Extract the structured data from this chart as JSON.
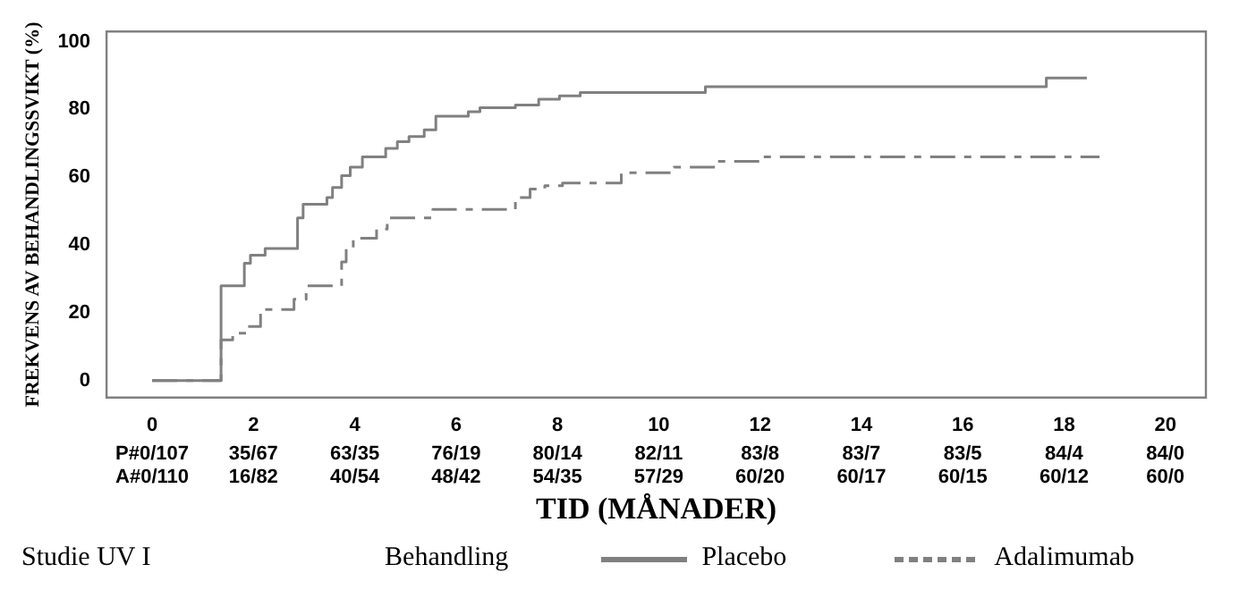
{
  "chart_data": {
    "type": "step",
    "xlabel": "TID (MÅNADER)",
    "ylabel": "FREKVENS AV BEHANDLINGSSVIKT (%)",
    "legend_title": "Behandling",
    "xlim": [
      -0.9,
      20.8
    ],
    "ylim": [
      -5,
      103
    ],
    "xticks": [
      0,
      2,
      4,
      6,
      8,
      10,
      12,
      14,
      16,
      18,
      20
    ],
    "yticks": [
      0,
      20,
      40,
      60,
      80,
      100
    ],
    "grid": false,
    "legend": "bottom",
    "series": [
      {
        "name": "Placebo",
        "color": "#808080",
        "line_style": "solid",
        "x": [
          0,
          1.36,
          1.82,
          1.94,
          2.23,
          2.87,
          2.98,
          3.45,
          3.56,
          3.74,
          3.91,
          4.15,
          4.61,
          4.84,
          5.07,
          5.37,
          5.6,
          6.24,
          6.47,
          7.17,
          7.63,
          8.04,
          8.45,
          10.92,
          17.65,
          18.45
        ],
        "values": [
          0,
          28,
          34.6,
          37,
          39,
          48,
          52,
          54,
          57,
          60.5,
          63,
          66,
          68.5,
          70.5,
          72,
          74,
          78,
          79.3,
          80.5,
          81.3,
          83,
          84,
          85,
          86.7,
          89.3,
          89.3
        ]
      },
      {
        "name": "Adalimumab",
        "color": "#808080",
        "line_style": "dashed",
        "x": [
          0,
          1.36,
          1.59,
          1.88,
          2.14,
          2.8,
          3.04,
          3.74,
          3.83,
          3.97,
          4.43,
          4.64,
          5.54,
          7.17,
          7.46,
          7.75,
          8.1,
          9.26,
          10.3,
          11.11,
          11.99,
          18.7
        ],
        "values": [
          0,
          12,
          14,
          16,
          21,
          24,
          28,
          35,
          39,
          42,
          44.7,
          48,
          50.5,
          54,
          56.5,
          57.5,
          58.3,
          61.3,
          63,
          64.7,
          66,
          66
        ]
      }
    ],
    "annotations": [
      "Studie UV I",
      "P#0/107",
      "35/67",
      "63/35",
      "76/19",
      "80/14",
      "82/11",
      "83/8",
      "83/7",
      "83/5",
      "84/4",
      "84/0",
      "A#0/110",
      "16/82",
      "40/54",
      "48/42",
      "54/35",
      "57/29",
      "60/20",
      "60/17",
      "60/15",
      "60/12",
      "60/0"
    ]
  }
}
